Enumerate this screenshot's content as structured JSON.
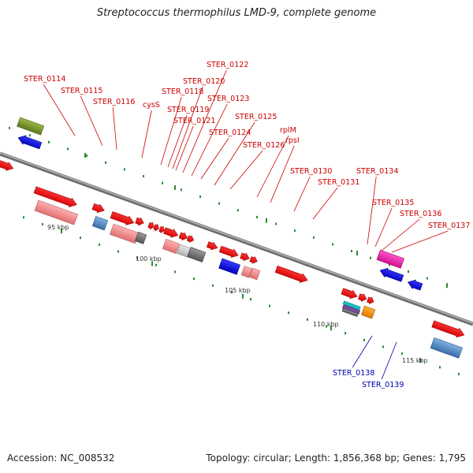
{
  "title": "Streptococcus thermophilus LMD-9, complete genome",
  "accession": "Accession: NC_008532",
  "summary": "Topology: circular; Length: 1,856,368 bp; Genes: 1,795",
  "colors": {
    "label_red": "#cc0000",
    "label_blue": "#0000aa",
    "backbone": "#888888",
    "tick": "#2a8a2a",
    "scale_text": "#333333"
  },
  "scale_labels": [
    "95 kbp",
    "100 kbp",
    "105 kbp",
    "110 kbp",
    "115 kbp"
  ],
  "gene_labels": [
    {
      "text": "STER_0114",
      "color": "red"
    },
    {
      "text": "STER_0115",
      "color": "red"
    },
    {
      "text": "STER_0116",
      "color": "red"
    },
    {
      "text": "cysS",
      "color": "red"
    },
    {
      "text": "STER_0118",
      "color": "red"
    },
    {
      "text": "STER_0119",
      "color": "red"
    },
    {
      "text": "STER_0120",
      "color": "red"
    },
    {
      "text": "STER_0121",
      "color": "red"
    },
    {
      "text": "STER_0122",
      "color": "red"
    },
    {
      "text": "STER_0123",
      "color": "red"
    },
    {
      "text": "STER_0124",
      "color": "red"
    },
    {
      "text": "STER_0125",
      "color": "red"
    },
    {
      "text": "STER_0126",
      "color": "red"
    },
    {
      "text": "rplM",
      "color": "red"
    },
    {
      "text": "rpsI",
      "color": "red"
    },
    {
      "text": "STER_0130",
      "color": "red"
    },
    {
      "text": "STER_0131",
      "color": "red"
    },
    {
      "text": "STER_0134",
      "color": "red"
    },
    {
      "text": "STER_0135",
      "color": "red"
    },
    {
      "text": "STER_0136",
      "color": "red"
    },
    {
      "text": "STER_0137",
      "color": "red"
    },
    {
      "text": "STER_0138",
      "color": "blue"
    },
    {
      "text": "STER_0139",
      "color": "blue"
    }
  ]
}
